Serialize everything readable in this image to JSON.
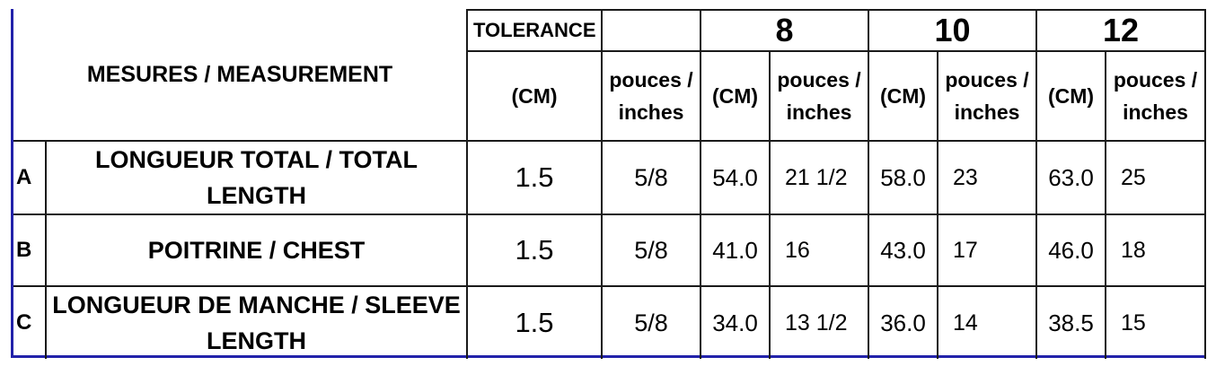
{
  "header": {
    "measurement_label": "MESURES / MEASUREMENT",
    "tolerance_label": "TOLERANCE",
    "unit_cm": "(CM)",
    "unit_inches": "pouces / inches",
    "sizes": [
      "8",
      "10",
      "12"
    ]
  },
  "rows": [
    {
      "letter": "A",
      "label": "LONGUEUR TOTAL / TOTAL LENGTH",
      "tol_cm": "1.5",
      "tol_in": "5/8",
      "s8_cm": "54.0",
      "s8_in": "21 1/2",
      "s10_cm": "58.0",
      "s10_in": "23",
      "s12_cm": "63.0",
      "s12_in": "25"
    },
    {
      "letter": "B",
      "label": "POITRINE / CHEST",
      "tol_cm": "1.5",
      "tol_in": "5/8",
      "s8_cm": "41.0",
      "s8_in": "16",
      "s10_cm": "43.0",
      "s10_in": "17",
      "s12_cm": "46.0",
      "s12_in": "18"
    },
    {
      "letter": "C",
      "label": "LONGUEUR DE MANCHE / SLEEVE LENGTH",
      "tol_cm": "1.5",
      "tol_in": "5/8",
      "s8_cm": "34.0",
      "s8_in": "13 1/2",
      "s10_cm": "36.0",
      "s10_in": "14",
      "s12_cm": "38.5",
      "s12_in": "15"
    }
  ]
}
